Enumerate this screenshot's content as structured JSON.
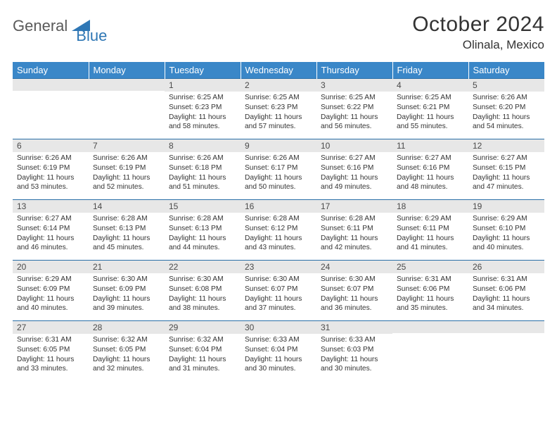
{
  "brand": {
    "part1": "General",
    "part2": "Blue"
  },
  "title": "October 2024",
  "location": "Olinala, Mexico",
  "colors": {
    "header_bg": "#3a87c8",
    "header_text": "#ffffff",
    "daynum_bg": "#e7e7e7",
    "rule": "#2a6fa8",
    "brand_gray": "#5a5a5a",
    "brand_blue": "#2f77b5"
  },
  "weekdays": [
    "Sunday",
    "Monday",
    "Tuesday",
    "Wednesday",
    "Thursday",
    "Friday",
    "Saturday"
  ],
  "weeks": [
    [
      null,
      null,
      {
        "n": "1",
        "sr": "6:25 AM",
        "ss": "6:23 PM",
        "dl": "11 hours and 58 minutes."
      },
      {
        "n": "2",
        "sr": "6:25 AM",
        "ss": "6:23 PM",
        "dl": "11 hours and 57 minutes."
      },
      {
        "n": "3",
        "sr": "6:25 AM",
        "ss": "6:22 PM",
        "dl": "11 hours and 56 minutes."
      },
      {
        "n": "4",
        "sr": "6:25 AM",
        "ss": "6:21 PM",
        "dl": "11 hours and 55 minutes."
      },
      {
        "n": "5",
        "sr": "6:26 AM",
        "ss": "6:20 PM",
        "dl": "11 hours and 54 minutes."
      }
    ],
    [
      {
        "n": "6",
        "sr": "6:26 AM",
        "ss": "6:19 PM",
        "dl": "11 hours and 53 minutes."
      },
      {
        "n": "7",
        "sr": "6:26 AM",
        "ss": "6:19 PM",
        "dl": "11 hours and 52 minutes."
      },
      {
        "n": "8",
        "sr": "6:26 AM",
        "ss": "6:18 PM",
        "dl": "11 hours and 51 minutes."
      },
      {
        "n": "9",
        "sr": "6:26 AM",
        "ss": "6:17 PM",
        "dl": "11 hours and 50 minutes."
      },
      {
        "n": "10",
        "sr": "6:27 AM",
        "ss": "6:16 PM",
        "dl": "11 hours and 49 minutes."
      },
      {
        "n": "11",
        "sr": "6:27 AM",
        "ss": "6:16 PM",
        "dl": "11 hours and 48 minutes."
      },
      {
        "n": "12",
        "sr": "6:27 AM",
        "ss": "6:15 PM",
        "dl": "11 hours and 47 minutes."
      }
    ],
    [
      {
        "n": "13",
        "sr": "6:27 AM",
        "ss": "6:14 PM",
        "dl": "11 hours and 46 minutes."
      },
      {
        "n": "14",
        "sr": "6:28 AM",
        "ss": "6:13 PM",
        "dl": "11 hours and 45 minutes."
      },
      {
        "n": "15",
        "sr": "6:28 AM",
        "ss": "6:13 PM",
        "dl": "11 hours and 44 minutes."
      },
      {
        "n": "16",
        "sr": "6:28 AM",
        "ss": "6:12 PM",
        "dl": "11 hours and 43 minutes."
      },
      {
        "n": "17",
        "sr": "6:28 AM",
        "ss": "6:11 PM",
        "dl": "11 hours and 42 minutes."
      },
      {
        "n": "18",
        "sr": "6:29 AM",
        "ss": "6:11 PM",
        "dl": "11 hours and 41 minutes."
      },
      {
        "n": "19",
        "sr": "6:29 AM",
        "ss": "6:10 PM",
        "dl": "11 hours and 40 minutes."
      }
    ],
    [
      {
        "n": "20",
        "sr": "6:29 AM",
        "ss": "6:09 PM",
        "dl": "11 hours and 40 minutes."
      },
      {
        "n": "21",
        "sr": "6:30 AM",
        "ss": "6:09 PM",
        "dl": "11 hours and 39 minutes."
      },
      {
        "n": "22",
        "sr": "6:30 AM",
        "ss": "6:08 PM",
        "dl": "11 hours and 38 minutes."
      },
      {
        "n": "23",
        "sr": "6:30 AM",
        "ss": "6:07 PM",
        "dl": "11 hours and 37 minutes."
      },
      {
        "n": "24",
        "sr": "6:30 AM",
        "ss": "6:07 PM",
        "dl": "11 hours and 36 minutes."
      },
      {
        "n": "25",
        "sr": "6:31 AM",
        "ss": "6:06 PM",
        "dl": "11 hours and 35 minutes."
      },
      {
        "n": "26",
        "sr": "6:31 AM",
        "ss": "6:06 PM",
        "dl": "11 hours and 34 minutes."
      }
    ],
    [
      {
        "n": "27",
        "sr": "6:31 AM",
        "ss": "6:05 PM",
        "dl": "11 hours and 33 minutes."
      },
      {
        "n": "28",
        "sr": "6:32 AM",
        "ss": "6:05 PM",
        "dl": "11 hours and 32 minutes."
      },
      {
        "n": "29",
        "sr": "6:32 AM",
        "ss": "6:04 PM",
        "dl": "11 hours and 31 minutes."
      },
      {
        "n": "30",
        "sr": "6:33 AM",
        "ss": "6:04 PM",
        "dl": "11 hours and 30 minutes."
      },
      {
        "n": "31",
        "sr": "6:33 AM",
        "ss": "6:03 PM",
        "dl": "11 hours and 30 minutes."
      },
      null,
      null
    ]
  ],
  "labels": {
    "sunrise": "Sunrise:",
    "sunset": "Sunset:",
    "daylight": "Daylight:"
  }
}
